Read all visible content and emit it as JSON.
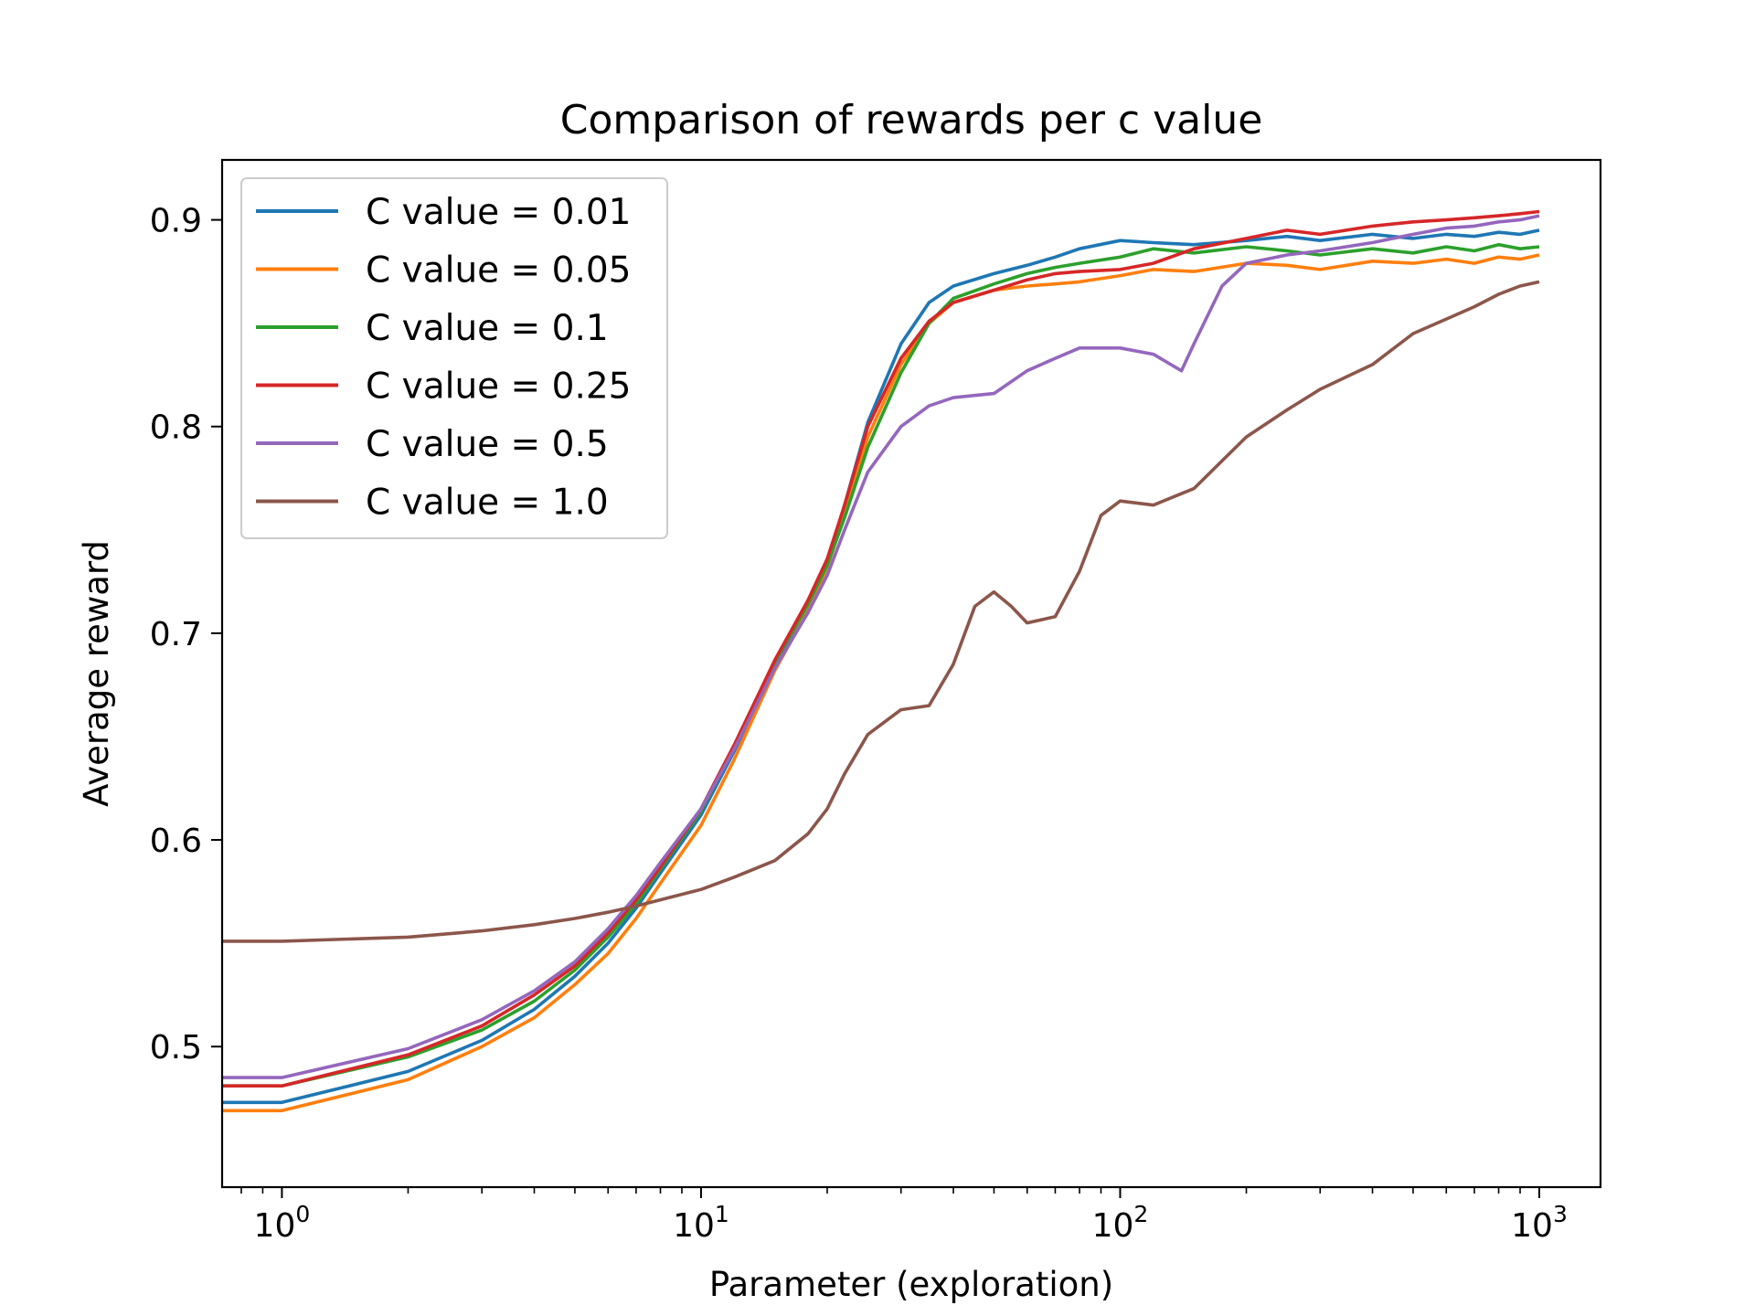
{
  "chart_data": {
    "type": "line",
    "title": "Comparison of rewards per c value",
    "xlabel": "Parameter (exploration)",
    "ylabel": "Average reward",
    "xscale": "log",
    "xlim": [
      0.72,
      1400
    ],
    "ylim": [
      0.432,
      0.929
    ],
    "xticks": [
      {
        "value": 1,
        "base": "10",
        "exp": "0"
      },
      {
        "value": 10,
        "base": "10",
        "exp": "1"
      },
      {
        "value": 100,
        "base": "10",
        "exp": "2"
      },
      {
        "value": 1000,
        "base": "10",
        "exp": "3"
      }
    ],
    "yticks": [
      {
        "value": 0.5,
        "label": "0.5"
      },
      {
        "value": 0.6,
        "label": "0.6"
      },
      {
        "value": 0.7,
        "label": "0.7"
      },
      {
        "value": 0.8,
        "label": "0.8"
      },
      {
        "value": 0.9,
        "label": "0.9"
      }
    ],
    "grid": false,
    "legend_position": "upper-left",
    "series": [
      {
        "name": "C value = 0.01",
        "color": "#1f77b4",
        "points": [
          [
            0.72,
            0.473
          ],
          [
            1,
            0.473
          ],
          [
            2,
            0.488
          ],
          [
            3,
            0.503
          ],
          [
            4,
            0.518
          ],
          [
            5,
            0.534
          ],
          [
            6,
            0.55
          ],
          [
            7,
            0.567
          ],
          [
            8,
            0.584
          ],
          [
            10,
            0.612
          ],
          [
            12,
            0.643
          ],
          [
            15,
            0.684
          ],
          [
            18,
            0.714
          ],
          [
            20,
            0.734
          ],
          [
            22,
            0.762
          ],
          [
            25,
            0.802
          ],
          [
            30,
            0.84
          ],
          [
            35,
            0.86
          ],
          [
            40,
            0.868
          ],
          [
            50,
            0.874
          ],
          [
            60,
            0.878
          ],
          [
            70,
            0.882
          ],
          [
            80,
            0.886
          ],
          [
            100,
            0.89
          ],
          [
            120,
            0.889
          ],
          [
            150,
            0.888
          ],
          [
            200,
            0.89
          ],
          [
            250,
            0.892
          ],
          [
            300,
            0.89
          ],
          [
            400,
            0.893
          ],
          [
            500,
            0.891
          ],
          [
            600,
            0.893
          ],
          [
            700,
            0.892
          ],
          [
            800,
            0.894
          ],
          [
            900,
            0.893
          ],
          [
            1000,
            0.895
          ]
        ]
      },
      {
        "name": "C value = 0.05",
        "color": "#ff7f0e",
        "points": [
          [
            0.72,
            0.469
          ],
          [
            1,
            0.469
          ],
          [
            2,
            0.484
          ],
          [
            3,
            0.5
          ],
          [
            4,
            0.514
          ],
          [
            5,
            0.53
          ],
          [
            6,
            0.545
          ],
          [
            7,
            0.562
          ],
          [
            8,
            0.579
          ],
          [
            10,
            0.607
          ],
          [
            12,
            0.639
          ],
          [
            15,
            0.682
          ],
          [
            18,
            0.711
          ],
          [
            20,
            0.732
          ],
          [
            22,
            0.757
          ],
          [
            25,
            0.795
          ],
          [
            30,
            0.83
          ],
          [
            35,
            0.85
          ],
          [
            40,
            0.86
          ],
          [
            50,
            0.866
          ],
          [
            60,
            0.868
          ],
          [
            70,
            0.869
          ],
          [
            80,
            0.87
          ],
          [
            100,
            0.873
          ],
          [
            120,
            0.876
          ],
          [
            150,
            0.875
          ],
          [
            200,
            0.879
          ],
          [
            250,
            0.878
          ],
          [
            300,
            0.876
          ],
          [
            400,
            0.88
          ],
          [
            500,
            0.879
          ],
          [
            600,
            0.881
          ],
          [
            700,
            0.879
          ],
          [
            800,
            0.882
          ],
          [
            900,
            0.881
          ],
          [
            1000,
            0.883
          ]
        ]
      },
      {
        "name": "C value = 0.1",
        "color": "#2ca02c",
        "points": [
          [
            0.72,
            0.481
          ],
          [
            1,
            0.481
          ],
          [
            2,
            0.495
          ],
          [
            3,
            0.508
          ],
          [
            4,
            0.522
          ],
          [
            5,
            0.537
          ],
          [
            6,
            0.553
          ],
          [
            7,
            0.569
          ],
          [
            8,
            0.586
          ],
          [
            10,
            0.614
          ],
          [
            12,
            0.645
          ],
          [
            15,
            0.686
          ],
          [
            18,
            0.714
          ],
          [
            20,
            0.733
          ],
          [
            22,
            0.756
          ],
          [
            25,
            0.79
          ],
          [
            30,
            0.826
          ],
          [
            35,
            0.85
          ],
          [
            40,
            0.862
          ],
          [
            50,
            0.869
          ],
          [
            60,
            0.874
          ],
          [
            70,
            0.877
          ],
          [
            80,
            0.879
          ],
          [
            100,
            0.882
          ],
          [
            120,
            0.886
          ],
          [
            150,
            0.884
          ],
          [
            200,
            0.887
          ],
          [
            250,
            0.885
          ],
          [
            300,
            0.883
          ],
          [
            400,
            0.886
          ],
          [
            500,
            0.884
          ],
          [
            600,
            0.887
          ],
          [
            700,
            0.885
          ],
          [
            800,
            0.888
          ],
          [
            900,
            0.886
          ],
          [
            1000,
            0.887
          ]
        ]
      },
      {
        "name": "C value = 0.25",
        "color": "#d62728",
        "points": [
          [
            0.72,
            0.481
          ],
          [
            1,
            0.481
          ],
          [
            2,
            0.496
          ],
          [
            3,
            0.51
          ],
          [
            4,
            0.525
          ],
          [
            5,
            0.539
          ],
          [
            6,
            0.555
          ],
          [
            7,
            0.571
          ],
          [
            8,
            0.587
          ],
          [
            10,
            0.615
          ],
          [
            12,
            0.646
          ],
          [
            15,
            0.687
          ],
          [
            18,
            0.716
          ],
          [
            20,
            0.736
          ],
          [
            22,
            0.762
          ],
          [
            25,
            0.8
          ],
          [
            30,
            0.833
          ],
          [
            35,
            0.851
          ],
          [
            40,
            0.86
          ],
          [
            50,
            0.866
          ],
          [
            60,
            0.871
          ],
          [
            70,
            0.874
          ],
          [
            80,
            0.875
          ],
          [
            100,
            0.876
          ],
          [
            120,
            0.879
          ],
          [
            150,
            0.886
          ],
          [
            200,
            0.891
          ],
          [
            250,
            0.895
          ],
          [
            300,
            0.893
          ],
          [
            400,
            0.897
          ],
          [
            500,
            0.899
          ],
          [
            600,
            0.9
          ],
          [
            700,
            0.901
          ],
          [
            800,
            0.902
          ],
          [
            900,
            0.903
          ],
          [
            1000,
            0.904
          ]
        ]
      },
      {
        "name": "C value = 0.5",
        "color": "#9467bd",
        "points": [
          [
            0.72,
            0.485
          ],
          [
            1,
            0.485
          ],
          [
            2,
            0.499
          ],
          [
            3,
            0.513
          ],
          [
            4,
            0.527
          ],
          [
            5,
            0.541
          ],
          [
            6,
            0.557
          ],
          [
            7,
            0.573
          ],
          [
            8,
            0.589
          ],
          [
            10,
            0.615
          ],
          [
            12,
            0.644
          ],
          [
            15,
            0.683
          ],
          [
            18,
            0.71
          ],
          [
            20,
            0.728
          ],
          [
            22,
            0.75
          ],
          [
            25,
            0.778
          ],
          [
            30,
            0.8
          ],
          [
            35,
            0.81
          ],
          [
            40,
            0.814
          ],
          [
            50,
            0.816
          ],
          [
            60,
            0.827
          ],
          [
            70,
            0.833
          ],
          [
            80,
            0.838
          ],
          [
            100,
            0.838
          ],
          [
            120,
            0.835
          ],
          [
            140,
            0.827
          ],
          [
            150,
            0.84
          ],
          [
            175,
            0.868
          ],
          [
            200,
            0.879
          ],
          [
            250,
            0.883
          ],
          [
            300,
            0.885
          ],
          [
            400,
            0.889
          ],
          [
            500,
            0.893
          ],
          [
            600,
            0.896
          ],
          [
            700,
            0.897
          ],
          [
            800,
            0.899
          ],
          [
            900,
            0.9
          ],
          [
            1000,
            0.902
          ]
        ]
      },
      {
        "name": "C value = 1.0",
        "color": "#8c564b",
        "points": [
          [
            0.72,
            0.551
          ],
          [
            1,
            0.551
          ],
          [
            2,
            0.553
          ],
          [
            3,
            0.556
          ],
          [
            4,
            0.559
          ],
          [
            5,
            0.562
          ],
          [
            6,
            0.565
          ],
          [
            7,
            0.568
          ],
          [
            8,
            0.571
          ],
          [
            10,
            0.576
          ],
          [
            12,
            0.582
          ],
          [
            15,
            0.59
          ],
          [
            18,
            0.603
          ],
          [
            20,
            0.615
          ],
          [
            22,
            0.632
          ],
          [
            25,
            0.651
          ],
          [
            30,
            0.663
          ],
          [
            35,
            0.665
          ],
          [
            40,
            0.685
          ],
          [
            45,
            0.713
          ],
          [
            50,
            0.72
          ],
          [
            55,
            0.713
          ],
          [
            60,
            0.705
          ],
          [
            70,
            0.708
          ],
          [
            80,
            0.73
          ],
          [
            90,
            0.757
          ],
          [
            100,
            0.764
          ],
          [
            120,
            0.762
          ],
          [
            150,
            0.77
          ],
          [
            200,
            0.795
          ],
          [
            250,
            0.808
          ],
          [
            300,
            0.818
          ],
          [
            400,
            0.83
          ],
          [
            500,
            0.845
          ],
          [
            600,
            0.852
          ],
          [
            700,
            0.858
          ],
          [
            800,
            0.864
          ],
          [
            900,
            0.868
          ],
          [
            1000,
            0.87
          ]
        ]
      }
    ]
  }
}
